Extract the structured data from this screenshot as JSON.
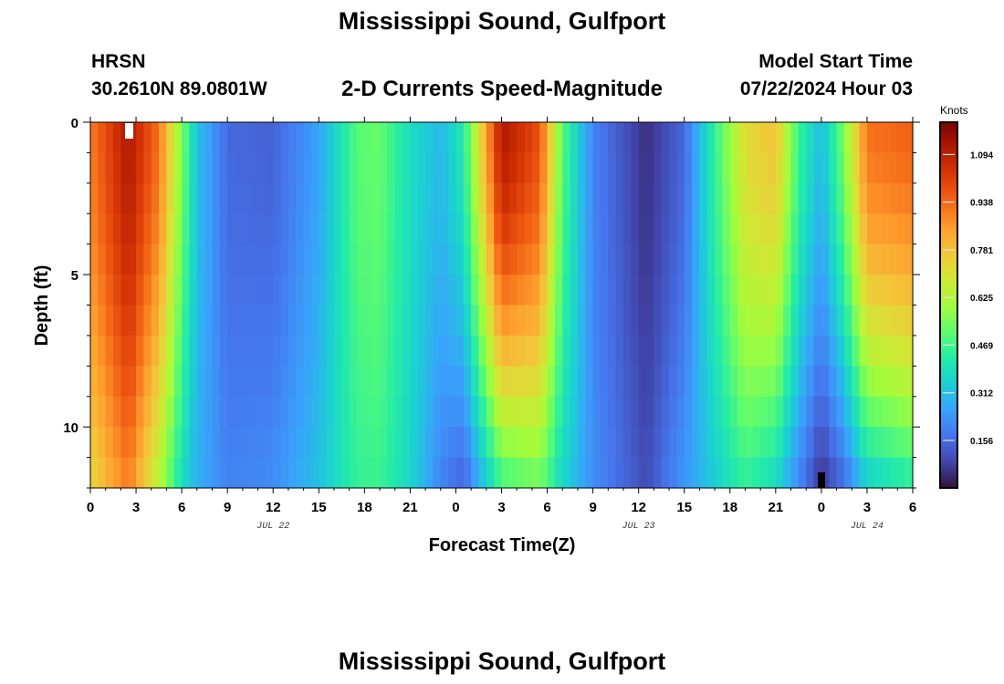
{
  "page": {
    "title": "Mississippi Sound, Gulfport",
    "bottom_title": "Mississippi Sound, Gulfport",
    "station_id": "HRSN",
    "coords": "30.2610N  89.0801W",
    "subtitle": "2-D Currents Speed-Magnitude",
    "model_label": "Model Start Time",
    "model_start": "07/22/2024 Hour 03"
  },
  "chart_data": {
    "type": "heatmap",
    "xlabel": "Forecast Time(Z)",
    "ylabel": "Depth (ft)",
    "x_range_hours": [
      0,
      54
    ],
    "x_tick_labels": [
      "0",
      "3",
      "6",
      "9",
      "12",
      "15",
      "18",
      "21",
      "0",
      "3",
      "6",
      "9",
      "12",
      "15",
      "18",
      "21",
      "0",
      "3",
      "6"
    ],
    "date_labels": [
      {
        "label": "JUL 22",
        "hour": 12
      },
      {
        "label": "JUL 23",
        "hour": 36
      },
      {
        "label": "JUL 24",
        "hour": 51
      }
    ],
    "ylim": [
      0,
      12
    ],
    "y_tick_labels": [
      "0",
      "5",
      "10"
    ],
    "colorbar": {
      "title": "Knots",
      "min": 0.0,
      "max": 1.2,
      "tick_labels": [
        "1.094",
        "0.938",
        "0.781",
        "0.625",
        "0.469",
        "0.312",
        "0.156"
      ],
      "colors": [
        "#30123b",
        "#4145ab",
        "#4675ed",
        "#39a2fc",
        "#1bcfd4",
        "#24eca6",
        "#61fc6c",
        "#a4fc3b",
        "#d1e834",
        "#f3c63a",
        "#fe9b2d",
        "#f36315",
        "#d93806",
        "#b11901",
        "#7a0402"
      ]
    },
    "speed_profile_knots": [
      {
        "hour": 0,
        "surface": 0.9,
        "bottom": 0.72
      },
      {
        "hour": 2.5,
        "surface": 1.12,
        "bottom": 0.9
      },
      {
        "hour": 4.5,
        "surface": 0.92,
        "bottom": 0.62
      },
      {
        "hour": 6,
        "surface": 0.55,
        "bottom": 0.38
      },
      {
        "hour": 7,
        "surface": 0.32,
        "bottom": 0.28
      },
      {
        "hour": 9,
        "surface": 0.15,
        "bottom": 0.2
      },
      {
        "hour": 12,
        "surface": 0.14,
        "bottom": 0.22
      },
      {
        "hour": 15,
        "surface": 0.26,
        "bottom": 0.32
      },
      {
        "hour": 17.5,
        "surface": 0.5,
        "bottom": 0.45
      },
      {
        "hour": 19,
        "surface": 0.52,
        "bottom": 0.46
      },
      {
        "hour": 21,
        "surface": 0.38,
        "bottom": 0.36
      },
      {
        "hour": 23,
        "surface": 0.3,
        "bottom": 0.2
      },
      {
        "hour": 24.5,
        "surface": 0.42,
        "bottom": 0.13
      },
      {
        "hour": 27,
        "surface": 1.12,
        "bottom": 0.45
      },
      {
        "hour": 29.5,
        "surface": 0.98,
        "bottom": 0.52
      },
      {
        "hour": 31,
        "surface": 0.5,
        "bottom": 0.36
      },
      {
        "hour": 33,
        "surface": 0.2,
        "bottom": 0.22
      },
      {
        "hour": 36.5,
        "surface": 0.05,
        "bottom": 0.1
      },
      {
        "hour": 39,
        "surface": 0.15,
        "bottom": 0.24
      },
      {
        "hour": 41,
        "surface": 0.45,
        "bottom": 0.34
      },
      {
        "hour": 43,
        "surface": 0.72,
        "bottom": 0.44
      },
      {
        "hour": 45,
        "surface": 0.78,
        "bottom": 0.36
      },
      {
        "hour": 46.5,
        "surface": 0.46,
        "bottom": 0.2
      },
      {
        "hour": 48,
        "surface": 0.3,
        "bottom": 0.05
      },
      {
        "hour": 49.5,
        "surface": 0.55,
        "bottom": 0.15
      },
      {
        "hour": 51,
        "surface": 0.92,
        "bottom": 0.33
      },
      {
        "hour": 54,
        "surface": 0.95,
        "bottom": 0.42
      }
    ]
  }
}
